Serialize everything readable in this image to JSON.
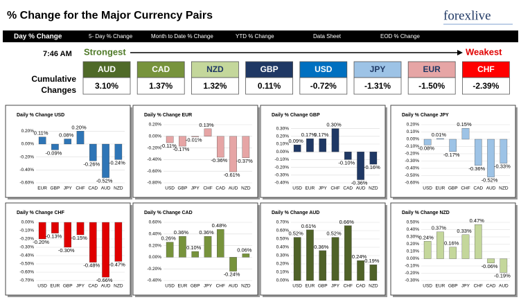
{
  "header": {
    "title": "% Change for the Major Currency Pairs",
    "logo": "forexlive"
  },
  "nav": [
    "Day % Change",
    "5- Day % Change",
    "Month to Date % Change",
    "YTD % Change",
    "Data Sheet",
    "EOD % Change"
  ],
  "time": "7:46 AM",
  "strongest": "Strongest",
  "weakest": "Weakest",
  "cumulative_label": [
    "Cumulative",
    "Changes"
  ],
  "currencies": [
    {
      "name": "AUD",
      "change": "3.10%",
      "color": "#4f6a28"
    },
    {
      "name": "CAD",
      "change": "1.37%",
      "color": "#77933c"
    },
    {
      "name": "NZD",
      "change": "1.32%",
      "color": "#c4d79b"
    },
    {
      "name": "GBP",
      "change": "0.11%",
      "color": "#1f3864"
    },
    {
      "name": "USD",
      "change": "-0.72%",
      "color": "#0070c0"
    },
    {
      "name": "JPY",
      "change": "-1.31%",
      "color": "#9dc3e6"
    },
    {
      "name": "EUR",
      "change": "-1.50%",
      "color": "#e6a5a5"
    },
    {
      "name": "CHF",
      "change": "-2.39%",
      "color": "#ff0000"
    }
  ],
  "chart_data": [
    {
      "type": "bar",
      "title": "Daily % Change USD",
      "color": "#2e75b6",
      "categories": [
        "EUR",
        "GBP",
        "JPY",
        "CHF",
        "CAD",
        "AUD",
        "NZD"
      ],
      "values": [
        0.11,
        -0.09,
        0.08,
        0.2,
        -0.26,
        -0.52,
        -0.24
      ],
      "value_labels": [
        "0.11%",
        "-0.09%",
        "0.08%",
        "0.20%",
        "-0.26%",
        "-0.52%",
        "-0.24%"
      ],
      "ylim": [
        -0.6,
        0.3
      ],
      "yticks": [
        {
          "value": 0.2,
          "label": "0.20%"
        },
        {
          "value": 0,
          "label": "0.00%"
        },
        {
          "value": -0.2,
          "label": "-0.20%"
        },
        {
          "value": -0.4,
          "label": "-0.40%"
        },
        {
          "value": -0.6,
          "label": "-0.60%"
        }
      ]
    },
    {
      "type": "bar",
      "title": "Daily % Change EUR",
      "color": "#e6a5a5",
      "categories": [
        "USD",
        "GBP",
        "JPY",
        "CHF",
        "CAD",
        "AUD",
        "NZD"
      ],
      "values": [
        -0.11,
        -0.17,
        -0.01,
        0.13,
        -0.36,
        -0.61,
        -0.37
      ],
      "value_labels": [
        "-0.11%",
        "-0.17%",
        "-0.01%",
        "0.13%",
        "-0.36%",
        "-0.61%",
        "-0.37%"
      ],
      "ylim": [
        -0.8,
        0.2
      ],
      "yticks": [
        {
          "value": 0.2,
          "label": "0.20%"
        },
        {
          "value": 0,
          "label": "0.00%"
        },
        {
          "value": -0.2,
          "label": "-0.20%"
        },
        {
          "value": -0.4,
          "label": "-0.40%"
        },
        {
          "value": -0.6,
          "label": "-0.60%"
        },
        {
          "value": -0.8,
          "label": "-0.80%"
        }
      ]
    },
    {
      "type": "bar",
      "title": "Daily % Change GBP",
      "color": "#1f3864",
      "categories": [
        "USD",
        "EUR",
        "JPY",
        "CHF",
        "CAD",
        "AUD",
        "NZD"
      ],
      "values": [
        0.09,
        0.17,
        0.17,
        0.3,
        -0.1,
        -0.36,
        -0.16
      ],
      "value_labels": [
        "0.09%",
        "0.17%",
        "0.17%",
        "0.30%",
        "-0.10%",
        "-0.36%",
        "-0.16%"
      ],
      "ylim": [
        -0.4,
        0.35
      ],
      "yticks": [
        {
          "value": 0.3,
          "label": "0.30%"
        },
        {
          "value": 0.2,
          "label": "0.20%"
        },
        {
          "value": 0.1,
          "label": "0.10%"
        },
        {
          "value": 0,
          "label": "0.00%"
        },
        {
          "value": -0.1,
          "label": "-0.10%"
        },
        {
          "value": -0.2,
          "label": "-0.20%"
        },
        {
          "value": -0.3,
          "label": "-0.30%"
        },
        {
          "value": -0.4,
          "label": "-0.40%"
        }
      ]
    },
    {
      "type": "bar",
      "title": "Daily % Change JPY",
      "color": "#9dc3e6",
      "categories": [
        "USD",
        "EUR",
        "GBP",
        "CHF",
        "CAD",
        "AUD",
        "NZD"
      ],
      "values": [
        -0.08,
        0.01,
        -0.17,
        0.15,
        -0.36,
        -0.52,
        -0.33
      ],
      "value_labels": [
        "-0.08%",
        "0.01%",
        "-0.17%",
        "0.15%",
        "-0.36%",
        "-0.52%",
        "-0.33%"
      ],
      "ylim": [
        -0.6,
        0.2
      ],
      "yticks": [
        {
          "value": 0.2,
          "label": "0.20%"
        },
        {
          "value": 0.1,
          "label": "0.10%"
        },
        {
          "value": 0,
          "label": "0.00%"
        },
        {
          "value": -0.1,
          "label": "-0.10%"
        },
        {
          "value": -0.2,
          "label": "-0.20%"
        },
        {
          "value": -0.3,
          "label": "-0.30%"
        },
        {
          "value": -0.4,
          "label": "-0.40%"
        },
        {
          "value": -0.5,
          "label": "-0.50%"
        },
        {
          "value": -0.6,
          "label": "-0.60%"
        }
      ]
    },
    {
      "type": "bar",
      "title": "Daily % Change CHF",
      "color": "#e00000",
      "categories": [
        "USD",
        "EUR",
        "GBP",
        "JPY",
        "CAD",
        "AUD",
        "NZD"
      ],
      "values": [
        -0.2,
        -0.13,
        -0.3,
        -0.15,
        -0.48,
        -0.66,
        -0.47
      ],
      "value_labels": [
        "-0.20%",
        "-0.13%",
        "-0.30%",
        "-0.15%",
        "-0.48%",
        "-0.66%",
        "-0.47%"
      ],
      "ylim": [
        -0.7,
        0
      ],
      "yticks": [
        {
          "value": 0,
          "label": "0.00%"
        },
        {
          "value": -0.1,
          "label": "-0.10%"
        },
        {
          "value": -0.2,
          "label": "-0.20%"
        },
        {
          "value": -0.3,
          "label": "-0.30%"
        },
        {
          "value": -0.4,
          "label": "-0.40%"
        },
        {
          "value": -0.5,
          "label": "-0.50%"
        },
        {
          "value": -0.6,
          "label": "-0.60%"
        },
        {
          "value": -0.7,
          "label": "-0.70%"
        }
      ]
    },
    {
      "type": "bar",
      "title": "Daily % Change CAD",
      "color": "#77933c",
      "categories": [
        "USD",
        "EUR",
        "GBP",
        "JPY",
        "CHF",
        "AUD",
        "NZD"
      ],
      "values": [
        0.26,
        0.36,
        0.1,
        0.36,
        0.48,
        -0.24,
        0.06
      ],
      "value_labels": [
        "0.26%",
        "0.36%",
        "0.10%",
        "0.36%",
        "0.48%",
        "-0.24%",
        "0.06%"
      ],
      "ylim": [
        -0.4,
        0.6
      ],
      "yticks": [
        {
          "value": 0.6,
          "label": "0.60%"
        },
        {
          "value": 0.4,
          "label": "0.40%"
        },
        {
          "value": 0.2,
          "label": "0.20%"
        },
        {
          "value": 0,
          "label": "0.00%"
        },
        {
          "value": -0.2,
          "label": "-0.20%"
        },
        {
          "value": -0.4,
          "label": "-0.40%"
        }
      ]
    },
    {
      "type": "bar",
      "title": "Daily % Change AUD",
      "color": "#4f6228",
      "categories": [
        "USD",
        "EUR",
        "GBP",
        "JPY",
        "CHF",
        "CAD",
        "NZD"
      ],
      "values": [
        0.52,
        0.61,
        0.36,
        0.52,
        0.66,
        0.24,
        0.19
      ],
      "value_labels": [
        "0.52%",
        "0.61%",
        "0.36%",
        "0.52%",
        "0.66%",
        "0.24%",
        "0.19%"
      ],
      "ylim": [
        0,
        0.7
      ],
      "yticks": [
        {
          "value": 0.7,
          "label": "0.70%"
        },
        {
          "value": 0.6,
          "label": "0.60%"
        },
        {
          "value": 0.5,
          "label": "0.50%"
        },
        {
          "value": 0.4,
          "label": "0.40%"
        },
        {
          "value": 0.3,
          "label": "0.30%"
        },
        {
          "value": 0.2,
          "label": "0.20%"
        },
        {
          "value": 0.1,
          "label": "0.10%"
        },
        {
          "value": 0,
          "label": "0.00%"
        }
      ]
    },
    {
      "type": "bar",
      "title": "Daily % Change NZD",
      "color": "#c4d79b",
      "categories": [
        "USD",
        "EUR",
        "GBP",
        "JPY",
        "CHF",
        "CAD",
        "AUD"
      ],
      "values": [
        0.24,
        0.37,
        0.16,
        0.33,
        0.47,
        -0.06,
        -0.19
      ],
      "value_labels": [
        "0.24%",
        "0.37%",
        "0.16%",
        "0.33%",
        "0.47%",
        "-0.06%",
        "-0.19%"
      ],
      "ylim": [
        -0.3,
        0.5
      ],
      "yticks": [
        {
          "value": 0.5,
          "label": "0.50%"
        },
        {
          "value": 0.4,
          "label": "0.40%"
        },
        {
          "value": 0.3,
          "label": "0.30%"
        },
        {
          "value": 0.2,
          "label": "0.20%"
        },
        {
          "value": 0.1,
          "label": "0.10%"
        },
        {
          "value": 0,
          "label": "0.00%"
        },
        {
          "value": -0.1,
          "label": "-0.10%"
        },
        {
          "value": -0.2,
          "label": "-0.20%"
        },
        {
          "value": -0.3,
          "label": "-0.30%"
        }
      ]
    }
  ]
}
